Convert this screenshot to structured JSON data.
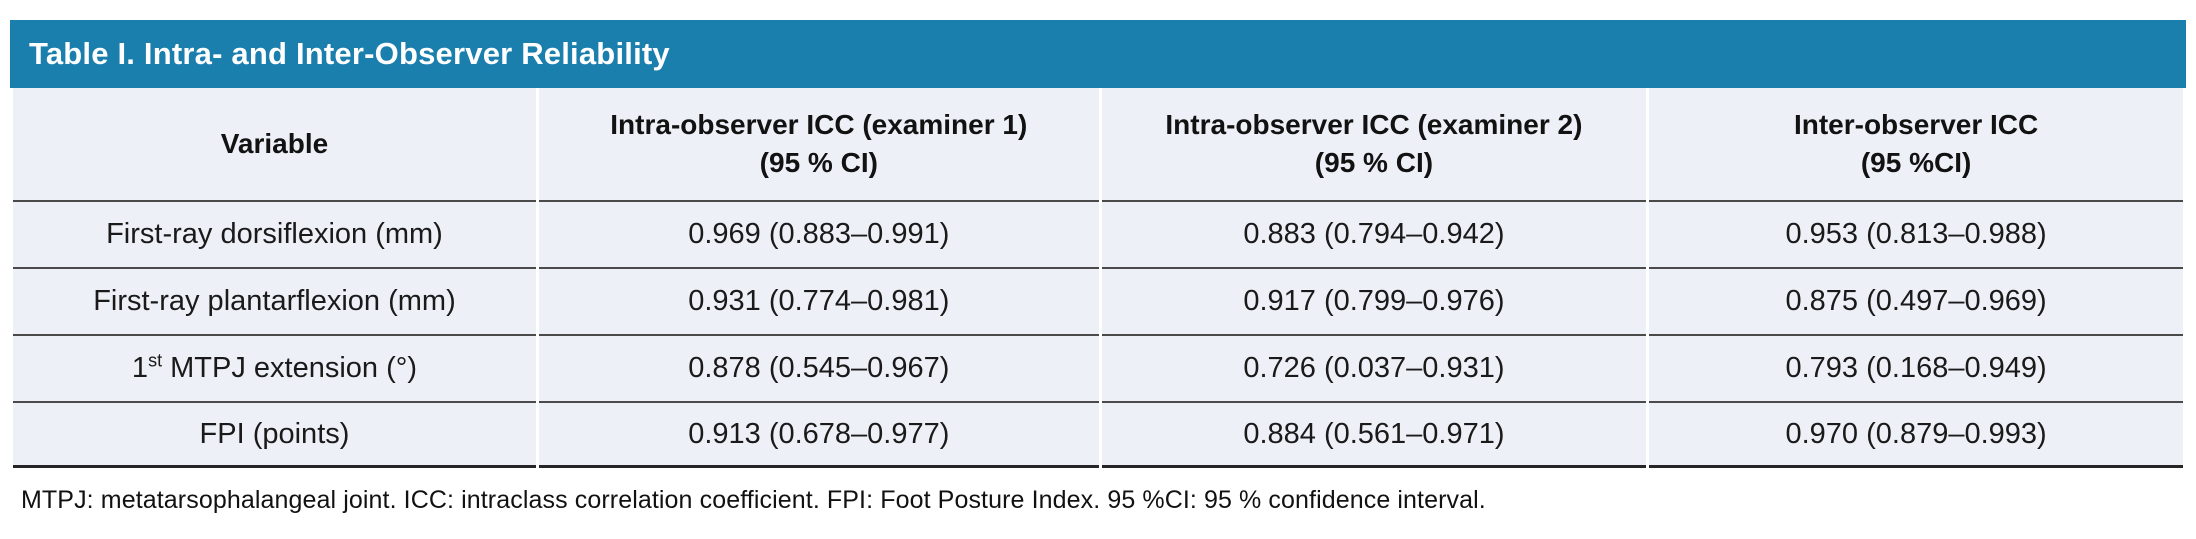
{
  "title": "Table I. Intra- and Inter-Observer Reliability",
  "colors": {
    "title_bar": "#1b7fad",
    "title_text": "#ffffff",
    "body_bg": "#edf0f7",
    "row_rule": "#4a4a4a",
    "bottom_rule": "#262626",
    "text": "#1a1a1a"
  },
  "table": {
    "columns": [
      {
        "line1": "Variable",
        "line2": ""
      },
      {
        "line1": "Intra-observer ICC (examiner 1)",
        "line2": "(95 % CI)"
      },
      {
        "line1": "Intra-observer ICC (examiner 2)",
        "line2": "(95 % CI)"
      },
      {
        "line1": "Inter-observer ICC",
        "line2": "(95 %CI)"
      }
    ],
    "rows": [
      {
        "variable": "First-ray dorsiflexion (mm)",
        "values": [
          "0.969 (0.883–0.991)",
          "0.883 (0.794–0.942)",
          "0.953 (0.813–0.988)"
        ]
      },
      {
        "variable": "First-ray plantarflexion (mm)",
        "values": [
          "0.931 (0.774–0.981)",
          "0.917 (0.799–0.976)",
          "0.875 (0.497–0.969)"
        ]
      },
      {
        "variable_parts": {
          "pre": "1",
          "sup": "st",
          "post": " MTPJ extension (°)"
        },
        "values": [
          "0.878 (0.545–0.967)",
          "0.726 (0.037–0.931)",
          "0.793 (0.168–0.949)"
        ]
      },
      {
        "variable": "FPI (points)",
        "values": [
          "0.913 (0.678–0.977)",
          "0.884 (0.561–0.971)",
          "0.970 (0.879–0.993)"
        ]
      }
    ]
  },
  "footnote": "MTPJ: metatarsophalangeal joint. ICC: intraclass correlation coefficient. FPI: Foot Posture Index. 95 %CI: 95 % confidence interval."
}
